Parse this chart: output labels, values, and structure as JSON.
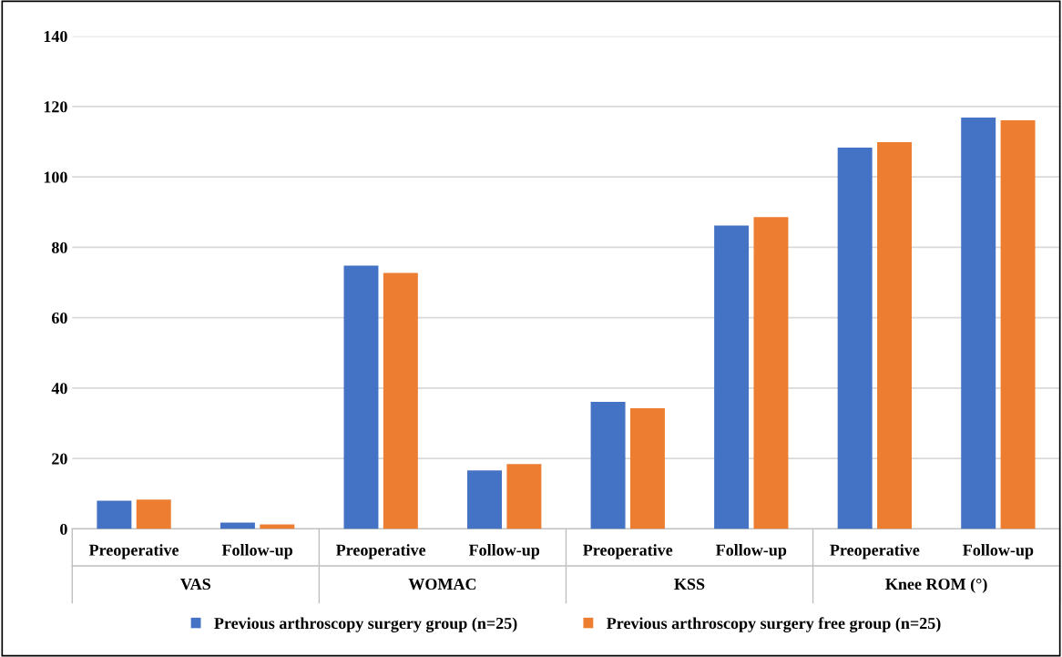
{
  "chart_data": {
    "type": "bar",
    "categories": [
      "Preoperative",
      "Follow-up",
      "Preoperative",
      "Follow-up",
      "Preoperative",
      "Follow-up",
      "Preoperative",
      "Follow-up"
    ],
    "annotations": [
      "VAS",
      "WOMAC",
      "KSS",
      "Knee ROM (°)"
    ],
    "series": [
      {
        "name": "Previous arthroscopy surgery group (n=25)",
        "color": "#4472c4",
        "values": [
          8.0,
          1.8,
          74.8,
          16.6,
          36.1,
          86.2,
          108.3,
          116.9
        ]
      },
      {
        "name": "Previous arthroscopy surgery free group (n=25)",
        "color": "#ed7d31",
        "values": [
          8.3,
          1.3,
          72.7,
          18.4,
          34.3,
          88.6,
          109.9,
          116.1
        ]
      }
    ],
    "ylim": [
      0,
      140
    ],
    "yticks": [
      0,
      20,
      40,
      60,
      80,
      100,
      120,
      140
    ],
    "grid": "y",
    "legend": "bottom"
  }
}
